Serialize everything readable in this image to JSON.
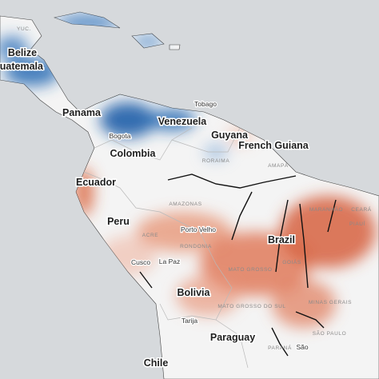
{
  "countries": [
    "Colombia",
    "Venezuela",
    "Guyana",
    "French Guiana",
    "Ecuador",
    "Peru",
    "Brazil",
    "Bolivia",
    "Paraguay",
    "Chile",
    "Panama",
    "Guatemala",
    "Belize"
  ],
  "cities": [
    "Bogota",
    "La Paz",
    "Porto Velho",
    "Cusco",
    "Tarija",
    "Tobago",
    "São"
  ],
  "regions": [
    "YUC.",
    "RORAIMA",
    "AMAPÁ",
    "AMAZONAS",
    "ACRE",
    "RONDONIA",
    "MATO GROSSO",
    "GOIÁS",
    "MATO GROSSO DO SUL",
    "MINAS GERAIS",
    "MARANHÃO",
    "PIAUÍ",
    "CEARÁ",
    "PARANÁ",
    "SÃO PAULO"
  ]
}
